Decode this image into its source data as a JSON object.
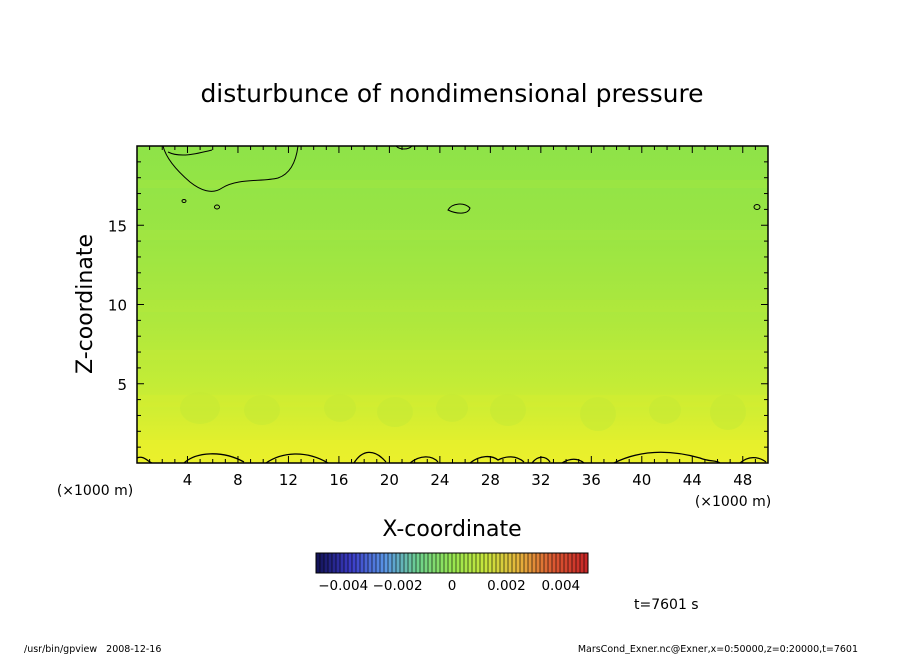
{
  "chart_data": {
    "type": "heatmap",
    "title": "disturbunce of nondimensional pressure",
    "xlabel": "X-coordinate",
    "ylabel": "Z-coordinate",
    "x_unit_left": "(×1000 m)",
    "x_unit_right": "(×1000 m)",
    "xlim": [
      0,
      50
    ],
    "ylim": [
      0,
      20
    ],
    "x_ticks": [
      4,
      8,
      12,
      16,
      20,
      24,
      28,
      32,
      36,
      40,
      44,
      48
    ],
    "y_ticks": [
      5,
      10,
      15
    ],
    "colorbar": {
      "range": [
        -0.005,
        0.005
      ],
      "tick_values": [
        -0.004,
        -0.002,
        0,
        0.002,
        0.004
      ],
      "tick_labels": [
        "−0.004",
        "−0.002",
        "0",
        "0.002",
        "0.004"
      ]
    },
    "z_profile": [
      {
        "z": 0,
        "value": 0.0014
      },
      {
        "z": 2,
        "value": 0.0011
      },
      {
        "z": 5,
        "value": 0.0008
      },
      {
        "z": 10,
        "value": 0.0005
      },
      {
        "z": 15,
        "value": 0.0003
      },
      {
        "z": 20,
        "value": 0.0002
      }
    ],
    "time_label": "t=7601 s",
    "colors": {
      "low": "#1a1a8c",
      "mid": "#8ee64d",
      "high": "#e62e1a"
    }
  },
  "footer": {
    "left": "/usr/bin/gpview   2008-12-16",
    "right": "MarsCond_Exner.nc@Exner,x=0:50000,z=0:20000,t=7601"
  }
}
